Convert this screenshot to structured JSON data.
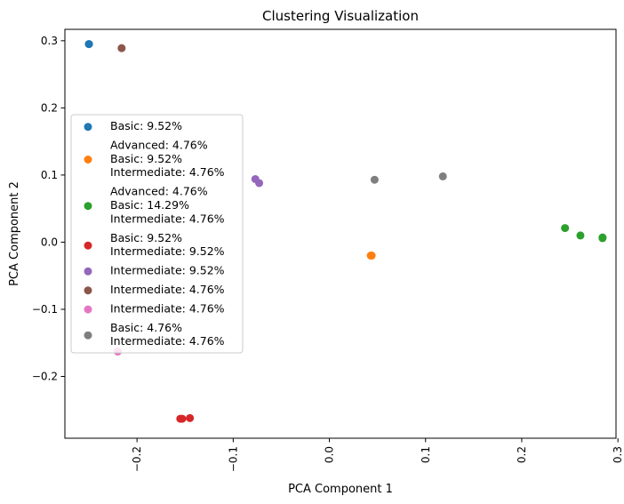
{
  "chart_data": {
    "type": "scatter",
    "title": "Clustering Visualization",
    "xlabel": "PCA Component 1",
    "ylabel": "PCA Component 2",
    "xlim": [
      -0.275,
      0.298
    ],
    "ylim": [
      -0.292,
      0.317
    ],
    "xticks": [
      {
        "value": -0.2,
        "label": "−0.2"
      },
      {
        "value": -0.1,
        "label": "−0.1"
      },
      {
        "value": 0.0,
        "label": "0.0"
      },
      {
        "value": 0.1,
        "label": "0.1"
      },
      {
        "value": 0.2,
        "label": "0.2"
      },
      {
        "value": 0.3,
        "label": "0.3"
      }
    ],
    "yticks": [
      {
        "value": -0.2,
        "label": "−0.2"
      },
      {
        "value": -0.1,
        "label": "−0.1"
      },
      {
        "value": 0.0,
        "label": "0.0"
      },
      {
        "value": 0.1,
        "label": "0.1"
      },
      {
        "value": 0.2,
        "label": "0.2"
      },
      {
        "value": 0.3,
        "label": "0.3"
      }
    ],
    "xtick_rotation": 90,
    "grid": false,
    "legend_position": "center-left",
    "series": [
      {
        "label_lines": [
          "Basic: 9.52%"
        ],
        "color": "#1f77b4",
        "points": [
          [
            -0.25,
            0.295
          ],
          [
            -0.25,
            0.295
          ]
        ]
      },
      {
        "label_lines": [
          "Advanced: 4.76%",
          "Basic: 9.52%",
          "Intermediate: 4.76%"
        ],
        "color": "#ff7f0e",
        "points": [
          [
            0.043,
            -0.02
          ],
          [
            0.044,
            -0.02
          ]
        ]
      },
      {
        "label_lines": [
          "Advanced: 4.76%",
          "Basic: 14.29%",
          "Intermediate: 4.76%"
        ],
        "color": "#2ca02c",
        "points": [
          [
            0.245,
            0.021
          ],
          [
            0.261,
            0.01
          ],
          [
            0.284,
            0.006
          ],
          [
            0.284,
            0.007
          ]
        ]
      },
      {
        "label_lines": [
          "Basic: 9.52%",
          "Intermediate: 9.52%"
        ],
        "color": "#d62728",
        "points": [
          [
            -0.155,
            -0.263
          ],
          [
            -0.153,
            -0.263
          ],
          [
            -0.145,
            -0.262
          ]
        ]
      },
      {
        "label_lines": [
          "Intermediate: 9.52%"
        ],
        "color": "#9467bd",
        "points": [
          [
            -0.077,
            0.094
          ],
          [
            -0.073,
            0.088
          ]
        ]
      },
      {
        "label_lines": [
          "Intermediate: 4.76%"
        ],
        "color": "#8c564b",
        "points": [
          [
            -0.216,
            0.289
          ]
        ]
      },
      {
        "label_lines": [
          "Intermediate: 4.76%"
        ],
        "color": "#e377c2",
        "points": [
          [
            -0.22,
            -0.163
          ]
        ]
      },
      {
        "label_lines": [
          "Basic: 4.76%",
          "Intermediate: 4.76%"
        ],
        "color": "#7f7f7f",
        "points": [
          [
            0.047,
            0.093
          ],
          [
            0.118,
            0.098
          ]
        ]
      }
    ]
  }
}
